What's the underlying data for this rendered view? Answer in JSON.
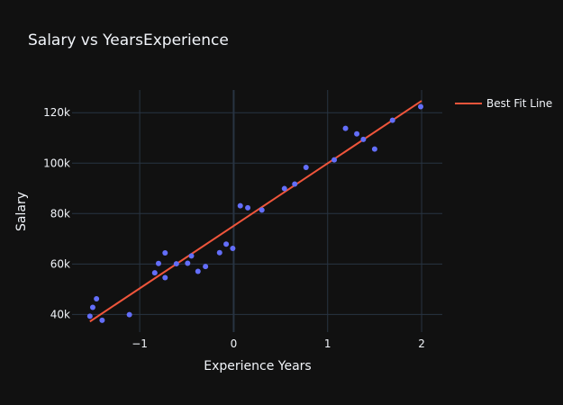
{
  "colors": {
    "background": "#111111",
    "plot_background": "#111111",
    "grid": "#283442",
    "zeroline": "#283442",
    "text": "#f2f5fa",
    "points": "#636efa",
    "line": "#ef553b"
  },
  "chart_data": {
    "type": "scatter",
    "title": "Salary vs YearsExperience",
    "xlabel": "Experience Years",
    "ylabel": "Salary",
    "xlim": [
      -1.72,
      2.22
    ],
    "ylim": [
      33000,
      129000
    ],
    "grid": true,
    "legend_position": "top-right",
    "x_ticks": [
      {
        "value": -1,
        "label": "−1"
      },
      {
        "value": 0,
        "label": "0"
      },
      {
        "value": 1,
        "label": "1"
      },
      {
        "value": 2,
        "label": "2"
      }
    ],
    "y_ticks": [
      {
        "value": 40000,
        "label": "40k"
      },
      {
        "value": 60000,
        "label": "60k"
      },
      {
        "value": 80000,
        "label": "80k"
      },
      {
        "value": 100000,
        "label": "100k"
      },
      {
        "value": 120000,
        "label": "120k"
      }
    ],
    "series": [
      {
        "kind": "scatter",
        "points": [
          [
            -1.53,
            39300
          ],
          [
            -1.5,
            42800
          ],
          [
            -1.46,
            46200
          ],
          [
            -1.4,
            37700
          ],
          [
            -1.11,
            39900
          ],
          [
            -0.84,
            56500
          ],
          [
            -0.8,
            60200
          ],
          [
            -0.73,
            64400
          ],
          [
            -0.73,
            54600
          ],
          [
            -0.61,
            60100
          ],
          [
            -0.49,
            60300
          ],
          [
            -0.45,
            63200
          ],
          [
            -0.38,
            57100
          ],
          [
            -0.3,
            59000
          ],
          [
            -0.15,
            64500
          ],
          [
            -0.08,
            67900
          ],
          [
            -0.01,
            66200
          ],
          [
            0.07,
            83100
          ],
          [
            0.15,
            82300
          ],
          [
            0.3,
            81400
          ],
          [
            0.54,
            89900
          ],
          [
            0.65,
            91700
          ],
          [
            0.77,
            98300
          ],
          [
            1.07,
            101300
          ],
          [
            1.19,
            113800
          ],
          [
            1.31,
            111600
          ],
          [
            1.38,
            109400
          ],
          [
            1.5,
            105600
          ],
          [
            1.69,
            117000
          ],
          [
            1.99,
            122400
          ]
        ]
      },
      {
        "kind": "line",
        "name": "Best Fit Line",
        "points": [
          [
            -1.53,
            37200
          ],
          [
            2.0,
            124700
          ]
        ]
      }
    ]
  }
}
